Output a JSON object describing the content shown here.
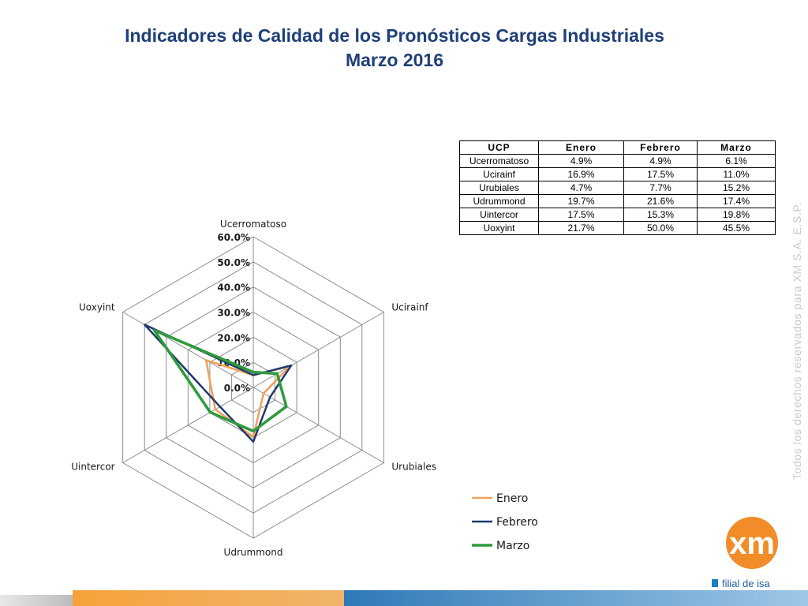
{
  "title": {
    "line1": "Indicadores de Calidad de los Pronósticos Cargas Industriales",
    "line2": "Marzo 2016"
  },
  "chart_data": {
    "type": "radar",
    "categories": [
      "Ucerromatoso",
      "Ucirainf",
      "Urubiales",
      "Udrummond",
      "Uintercor",
      "Uoxyint"
    ],
    "series": [
      {
        "name": "Enero",
        "color": "#f0a05a",
        "values": [
          4.9,
          16.9,
          4.7,
          19.7,
          17.5,
          21.7
        ]
      },
      {
        "name": "Febrero",
        "color": "#1f3a6e",
        "values": [
          4.9,
          17.5,
          7.7,
          21.6,
          15.3,
          50.0
        ]
      },
      {
        "name": "Marzo",
        "color": "#2e9a3c",
        "values": [
          6.1,
          11.0,
          15.2,
          17.4,
          19.8,
          45.5
        ]
      }
    ],
    "ticks": [
      "0.0%",
      "10.0%",
      "20.0%",
      "30.0%",
      "40.0%",
      "50.0%",
      "60.0%"
    ],
    "rlim": [
      0,
      60
    ],
    "grid": true,
    "legend_position": "bottom-right"
  },
  "table": {
    "headers": [
      "UCP",
      "Enero",
      "Febrero",
      "Marzo"
    ],
    "rows": [
      [
        "Ucerromatoso",
        "4.9%",
        "4.9%",
        "6.1%"
      ],
      [
        "Ucirainf",
        "16.9%",
        "17.5%",
        "11.0%"
      ],
      [
        "Urubiales",
        "4.7%",
        "7.7%",
        "15.2%"
      ],
      [
        "Udrummond",
        "19.7%",
        "21.6%",
        "17.4%"
      ],
      [
        "Uintercor",
        "17.5%",
        "15.3%",
        "19.8%"
      ],
      [
        "Uoxyint",
        "21.7%",
        "50.0%",
        "45.5%"
      ]
    ]
  },
  "watermark": "Todos los derechos reservados para XM S.A. E.S.P.",
  "logo": {
    "brand": "xm",
    "tagline": "filial de isa",
    "colors": {
      "orange": "#f28c28",
      "blue": "#1e7cc0"
    }
  }
}
